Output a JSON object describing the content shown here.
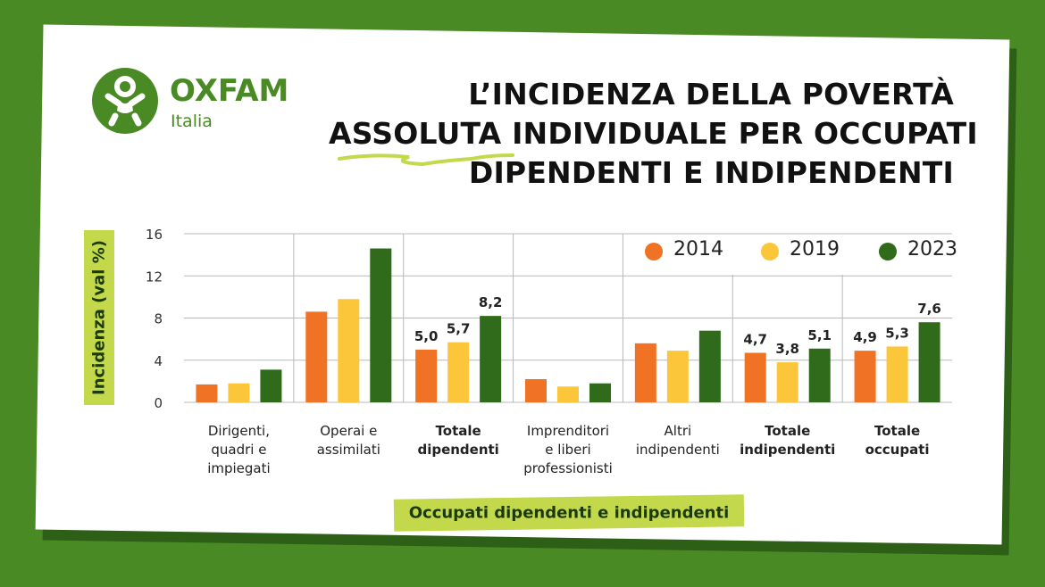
{
  "brand": {
    "name": "OXFAM",
    "sub": "Italia",
    "color": "#4a8a24"
  },
  "title_lines": [
    "L’INCIDENZA DELLA POVERTÀ",
    "ASSOLUTA INDIVIDUALE PER OCCUPATI",
    "DIPENDENTI E INDIPENDENTI"
  ],
  "colors": {
    "background": "#4a8a24",
    "highlight": "#c3d84a"
  },
  "chart_data": {
    "type": "bar",
    "title": "L’INCIDENZA DELLA POVERTÀ ASSOLUTA INDIVIDUALE PER OCCUPATI DIPENDENTI E INDIPENDENTI",
    "xlabel": "Occupati dipendenti e indipendenti",
    "ylabel": "Incidenza (val %)",
    "ylim": [
      0,
      16
    ],
    "yticks": [
      "0",
      "4",
      "8",
      "12",
      "16"
    ],
    "grid": true,
    "legend_position": "top-right",
    "categories": [
      {
        "lines": [
          "Dirigenti,",
          "quadri e",
          "impiegati"
        ],
        "bold": false,
        "labeled": false
      },
      {
        "lines": [
          "Operai e",
          "assimilati"
        ],
        "bold": false,
        "labeled": false
      },
      {
        "lines": [
          "Totale",
          "dipendenti"
        ],
        "bold": true,
        "labeled": true
      },
      {
        "lines": [
          "Imprenditori",
          "e liberi",
          "professionisti"
        ],
        "bold": false,
        "labeled": false
      },
      {
        "lines": [
          "Altri",
          "indipendenti"
        ],
        "bold": false,
        "labeled": false
      },
      {
        "lines": [
          "Totale",
          "indipendenti"
        ],
        "bold": true,
        "labeled": true
      },
      {
        "lines": [
          "Totale",
          "occupati"
        ],
        "bold": true,
        "labeled": true
      }
    ],
    "series": [
      {
        "name": "2014",
        "color": "#f07225",
        "values": [
          1.7,
          8.6,
          5.0,
          2.2,
          5.6,
          4.7,
          4.9
        ]
      },
      {
        "name": "2019",
        "color": "#fcc63a",
        "values": [
          1.8,
          9.8,
          5.7,
          1.5,
          4.9,
          3.8,
          5.3
        ]
      },
      {
        "name": "2023",
        "color": "#2f6b1a",
        "values": [
          3.1,
          14.6,
          8.2,
          1.8,
          6.8,
          5.1,
          7.6
        ]
      }
    ],
    "data_labels": {
      "2": [
        "5,0",
        "5,7",
        "8,2"
      ],
      "5": [
        "4,7",
        "3,8",
        "5,1"
      ],
      "6": [
        "4,9",
        "5,3",
        "7,6"
      ]
    }
  }
}
